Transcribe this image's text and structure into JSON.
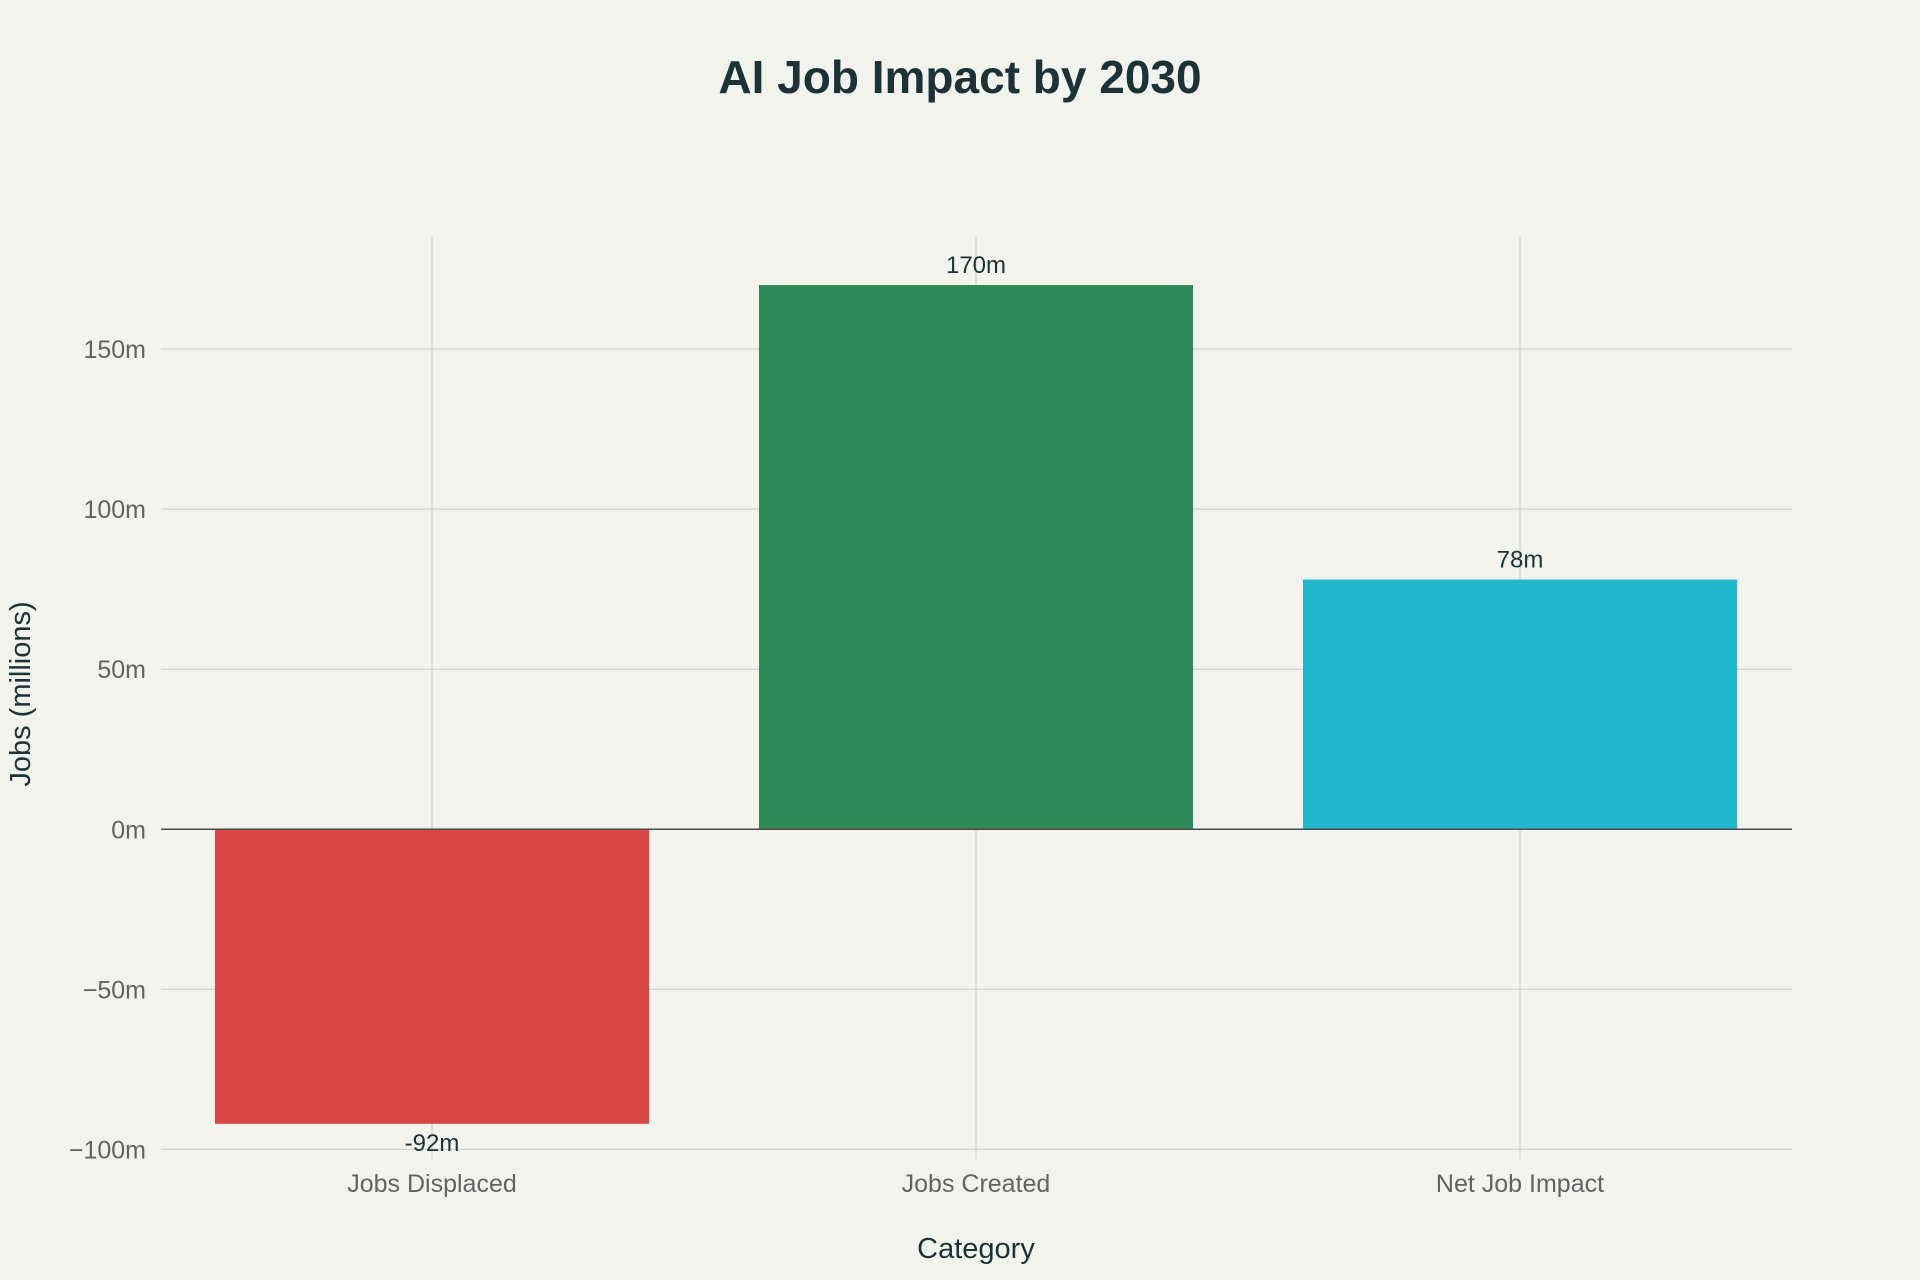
{
  "chart_data": {
    "type": "bar",
    "title": "AI Job Impact by 2030",
    "xlabel": "Category",
    "ylabel": "Jobs (millions)",
    "categories": [
      "Jobs Displaced",
      "Jobs Created",
      "Net Job Impact"
    ],
    "values": [
      -92,
      170,
      78
    ],
    "value_labels": [
      "-92m",
      "170m",
      "78m"
    ],
    "colors": [
      "#db4545",
      "#2e8b57",
      "#21b8cd"
    ],
    "ylim": [
      -103,
      185
    ],
    "y_ticks": [
      -100,
      -50,
      0,
      50,
      100,
      150
    ],
    "y_tick_labels": [
      "−100m",
      "−50m",
      "0m",
      "50m",
      "100m",
      "150m"
    ],
    "grid": true,
    "legend": "none"
  }
}
